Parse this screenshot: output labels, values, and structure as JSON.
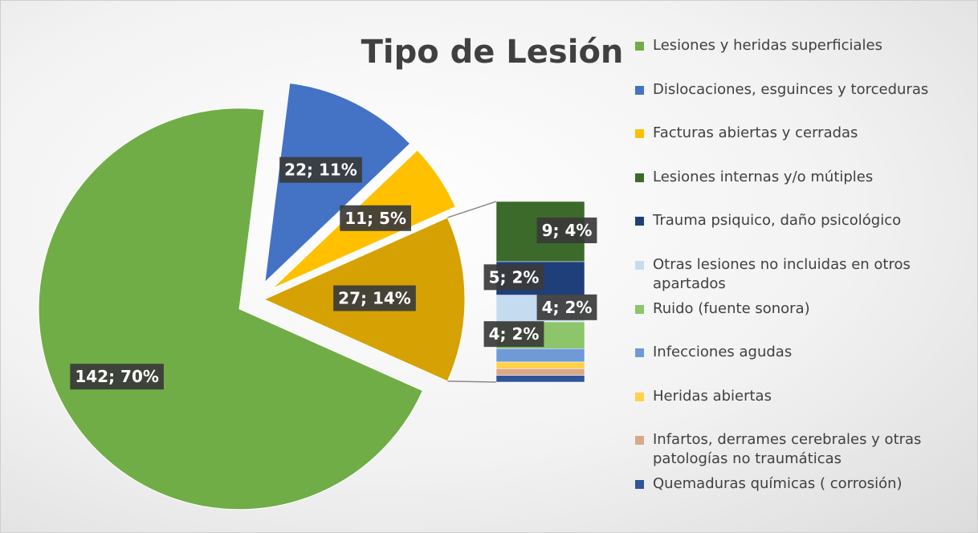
{
  "chart_data": {
    "type": "pie-of-bar",
    "title": "Tipo de Lesión",
    "categories": [
      "Lesiones y heridas superficiales",
      "Dislocaciones, esguinces y torceduras",
      "Facturas abiertas y cerradas",
      "Lesiones internas y/o mútiples",
      "Trauma psiquico, daño psicológico",
      "Otras lesiones no incluidas en otros apartados",
      "Ruido (fuente sonora)",
      "Infecciones agudas",
      "Heridas abiertas",
      "Infartos,  derrames cerebrales y otras patologías no traumáticas",
      "Quemaduras químicas ( corrosión)"
    ],
    "values": [
      142,
      22,
      11,
      9,
      5,
      4,
      4,
      2,
      1,
      1,
      1
    ],
    "value_labels": [
      "142; 70%",
      "22; 11%",
      "11; 5%",
      "9; 4%",
      "5; 2%",
      "4; 2%",
      "4; 2%",
      null,
      null,
      null,
      null
    ],
    "colors": [
      "#70ad47",
      "#4472c4",
      "#ffc000",
      "#3b6a2a",
      "#1f3f7a",
      "#c5dcf0",
      "#8cc56a",
      "#6f9ad8",
      "#ffd24a",
      "#d9a88a",
      "#2f5597"
    ],
    "pie_count": 3,
    "other_value": 27,
    "other_label": "27; 14%",
    "other_color": "#d6a103"
  }
}
